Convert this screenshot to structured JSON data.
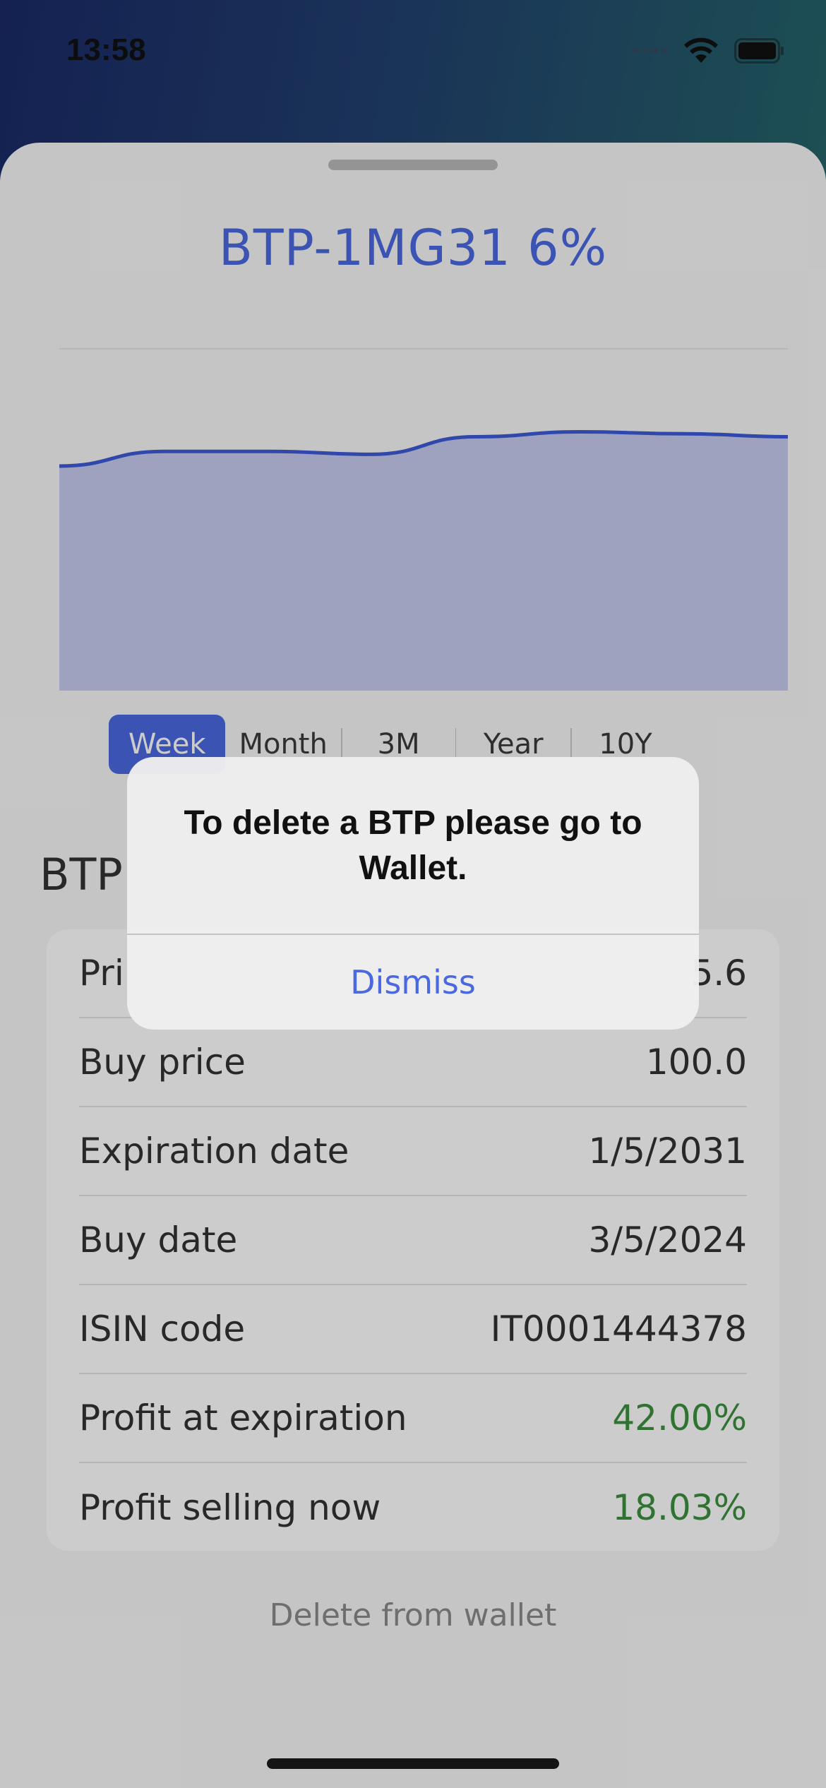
{
  "status_bar": {
    "time": "13:58",
    "icons": [
      "signal-icon",
      "wifi-icon",
      "battery-icon"
    ]
  },
  "sheet": {
    "title": "BTP-1MG31 6%"
  },
  "chart_data": {
    "type": "area",
    "title": "",
    "xlabel": "",
    "ylabel": "",
    "x": [
      0,
      1,
      2,
      3,
      4,
      5,
      6,
      7
    ],
    "values": [
      5.3,
      5.45,
      5.45,
      5.42,
      5.6,
      5.65,
      5.63,
      5.6
    ],
    "ylim": [
      3.0,
      6.5
    ],
    "grid": true,
    "line_color": "#3d59d6",
    "fill_color": "#c6cbee"
  },
  "range_selector": {
    "options": [
      "Week",
      "Month",
      "3M",
      "Year",
      "10Y"
    ],
    "selected": "Week"
  },
  "details": {
    "section_title": "BTP",
    "rows": [
      {
        "label": "Pri",
        "value": "5.6"
      },
      {
        "label": "Buy price",
        "value": "100.0"
      },
      {
        "label": "Expiration date",
        "value": "1/5/2031"
      },
      {
        "label": "Buy date",
        "value": "3/5/2024"
      },
      {
        "label": "ISIN code",
        "value": "IT0001444378"
      },
      {
        "label": "Profit at expiration",
        "value": "42.00%"
      },
      {
        "label": "Profit selling now",
        "value": "18.03%"
      }
    ]
  },
  "delete_link": "Delete from wallet",
  "alert": {
    "message": "To delete a BTP please go to Wallet.",
    "button": "Dismiss"
  },
  "colors": {
    "accent": "#4a68e0",
    "profit": "#3b8f3e"
  }
}
